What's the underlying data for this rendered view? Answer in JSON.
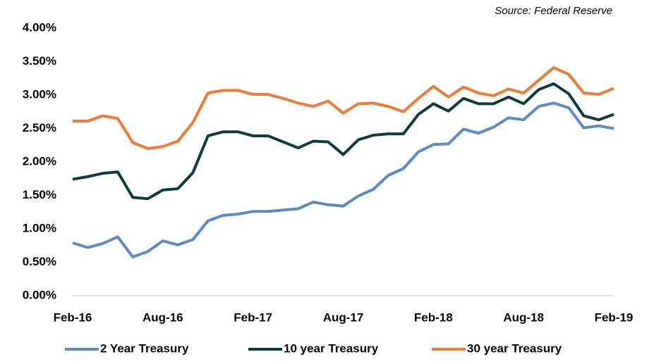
{
  "chart_data": {
    "type": "line",
    "source": "Source: Federal Reserve",
    "categories": [
      "Feb-16",
      null,
      null,
      null,
      null,
      null,
      "Aug-16",
      null,
      null,
      null,
      null,
      null,
      "Feb-17",
      null,
      null,
      null,
      null,
      null,
      "Aug-17",
      null,
      null,
      null,
      null,
      null,
      "Feb-18",
      null,
      null,
      null,
      null,
      null,
      "Aug-18",
      null,
      null,
      null,
      null,
      null,
      "Feb-19"
    ],
    "series": [
      {
        "name": "2 Year Treasury",
        "color": "#5b8ac6",
        "values": [
          0.79,
          0.72,
          0.78,
          0.88,
          0.58,
          0.66,
          0.82,
          0.76,
          0.84,
          1.12,
          1.2,
          1.22,
          1.26,
          1.26,
          1.28,
          1.3,
          1.4,
          1.36,
          1.34,
          1.49,
          1.59,
          1.8,
          1.9,
          2.15,
          2.26,
          2.27,
          2.49,
          2.43,
          2.52,
          2.66,
          2.63,
          2.83,
          2.88,
          2.81,
          2.51,
          2.54,
          2.5
        ]
      },
      {
        "name": "10 year Treasury",
        "color": "#0e3c3c",
        "values": [
          1.74,
          1.78,
          1.83,
          1.85,
          1.47,
          1.45,
          1.58,
          1.6,
          1.84,
          2.39,
          2.45,
          2.45,
          2.39,
          2.39,
          2.3,
          2.21,
          2.31,
          2.3,
          2.11,
          2.33,
          2.4,
          2.42,
          2.42,
          2.71,
          2.87,
          2.76,
          2.95,
          2.87,
          2.87,
          2.97,
          2.87,
          3.08,
          3.17,
          3.02,
          2.69,
          2.63,
          2.71
        ]
      },
      {
        "name": "30 year Treasury",
        "color": "#f07a30",
        "values": [
          2.61,
          2.61,
          2.69,
          2.65,
          2.29,
          2.2,
          2.23,
          2.31,
          2.59,
          3.03,
          3.07,
          3.07,
          3.01,
          3.01,
          2.95,
          2.88,
          2.83,
          2.91,
          2.73,
          2.87,
          2.88,
          2.83,
          2.75,
          2.95,
          3.13,
          2.97,
          3.12,
          3.03,
          2.99,
          3.09,
          3.03,
          3.22,
          3.41,
          3.31,
          3.03,
          3.01,
          3.1
        ]
      }
    ],
    "ylim": [
      0,
      4
    ],
    "yticks": [
      {
        "value": 0,
        "label": "0.00%"
      },
      {
        "value": 0.5,
        "label": "0.50%"
      },
      {
        "value": 1,
        "label": "1.00%"
      },
      {
        "value": 1.5,
        "label": "1.50%"
      },
      {
        "value": 2,
        "label": "2.00%"
      },
      {
        "value": 2.5,
        "label": "2.50%"
      },
      {
        "value": 3,
        "label": "3.00%"
      },
      {
        "value": 3.5,
        "label": "3.50%"
      },
      {
        "value": 4,
        "label": "4.00%"
      }
    ],
    "grid": false,
    "legend": "bottom"
  }
}
